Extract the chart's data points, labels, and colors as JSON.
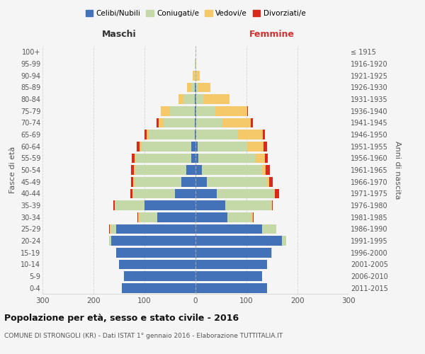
{
  "age_groups": [
    "0-4",
    "5-9",
    "10-14",
    "15-19",
    "20-24",
    "25-29",
    "30-34",
    "35-39",
    "40-44",
    "45-49",
    "50-54",
    "55-59",
    "60-64",
    "65-69",
    "70-74",
    "75-79",
    "80-84",
    "85-89",
    "90-94",
    "95-99",
    "100+"
  ],
  "birth_years": [
    "2011-2015",
    "2006-2010",
    "2001-2005",
    "1996-2000",
    "1991-1995",
    "1986-1990",
    "1981-1985",
    "1976-1980",
    "1971-1975",
    "1966-1970",
    "1961-1965",
    "1956-1960",
    "1951-1955",
    "1946-1950",
    "1941-1945",
    "1936-1940",
    "1931-1935",
    "1926-1930",
    "1921-1925",
    "1916-1920",
    "≤ 1915"
  ],
  "male": {
    "celibi": [
      145,
      140,
      150,
      155,
      165,
      155,
      75,
      100,
      40,
      28,
      18,
      8,
      8,
      2,
      2,
      2,
      2,
      1,
      0,
      0,
      0
    ],
    "coniugati": [
      0,
      0,
      0,
      1,
      4,
      12,
      35,
      58,
      82,
      92,
      100,
      108,
      98,
      90,
      60,
      48,
      22,
      7,
      2,
      1,
      0
    ],
    "vedovi": [
      0,
      0,
      0,
      0,
      0,
      1,
      2,
      1,
      1,
      2,
      3,
      3,
      4,
      4,
      10,
      18,
      10,
      8,
      3,
      0,
      0
    ],
    "divorziati": [
      0,
      0,
      0,
      0,
      0,
      2,
      2,
      2,
      5,
      5,
      5,
      6,
      5,
      4,
      4,
      0,
      0,
      0,
      0,
      0,
      0
    ]
  },
  "female": {
    "nubili": [
      140,
      130,
      140,
      148,
      170,
      130,
      62,
      58,
      42,
      22,
      12,
      6,
      4,
      2,
      1,
      1,
      1,
      1,
      0,
      0,
      0
    ],
    "coniugate": [
      0,
      0,
      0,
      2,
      8,
      28,
      48,
      90,
      112,
      118,
      118,
      112,
      98,
      82,
      52,
      38,
      14,
      4,
      2,
      0,
      0
    ],
    "vedove": [
      0,
      0,
      0,
      0,
      0,
      0,
      2,
      2,
      2,
      4,
      8,
      18,
      32,
      48,
      56,
      62,
      52,
      24,
      6,
      1,
      0
    ],
    "divorziate": [
      0,
      0,
      0,
      0,
      0,
      0,
      2,
      2,
      8,
      8,
      8,
      6,
      6,
      4,
      4,
      2,
      0,
      0,
      0,
      0,
      0
    ]
  },
  "colors": {
    "celibi": "#4472b8",
    "coniugati": "#c5d9a8",
    "vedovi": "#f5c96a",
    "divorziati": "#d9291c"
  },
  "xlim": 300,
  "title": "Popolazione per età, sesso e stato civile - 2016",
  "subtitle": "COMUNE DI STRONGOLI (KR) - Dati ISTAT 1° gennaio 2016 - Elaborazione TUTTITALIA.IT",
  "ylabel_left": "Fasce di età",
  "ylabel_right": "Anni di nascita",
  "xlabel_left": "Maschi",
  "xlabel_right": "Femmine",
  "background_color": "#f5f5f5",
  "grid_color": "#cccccc"
}
